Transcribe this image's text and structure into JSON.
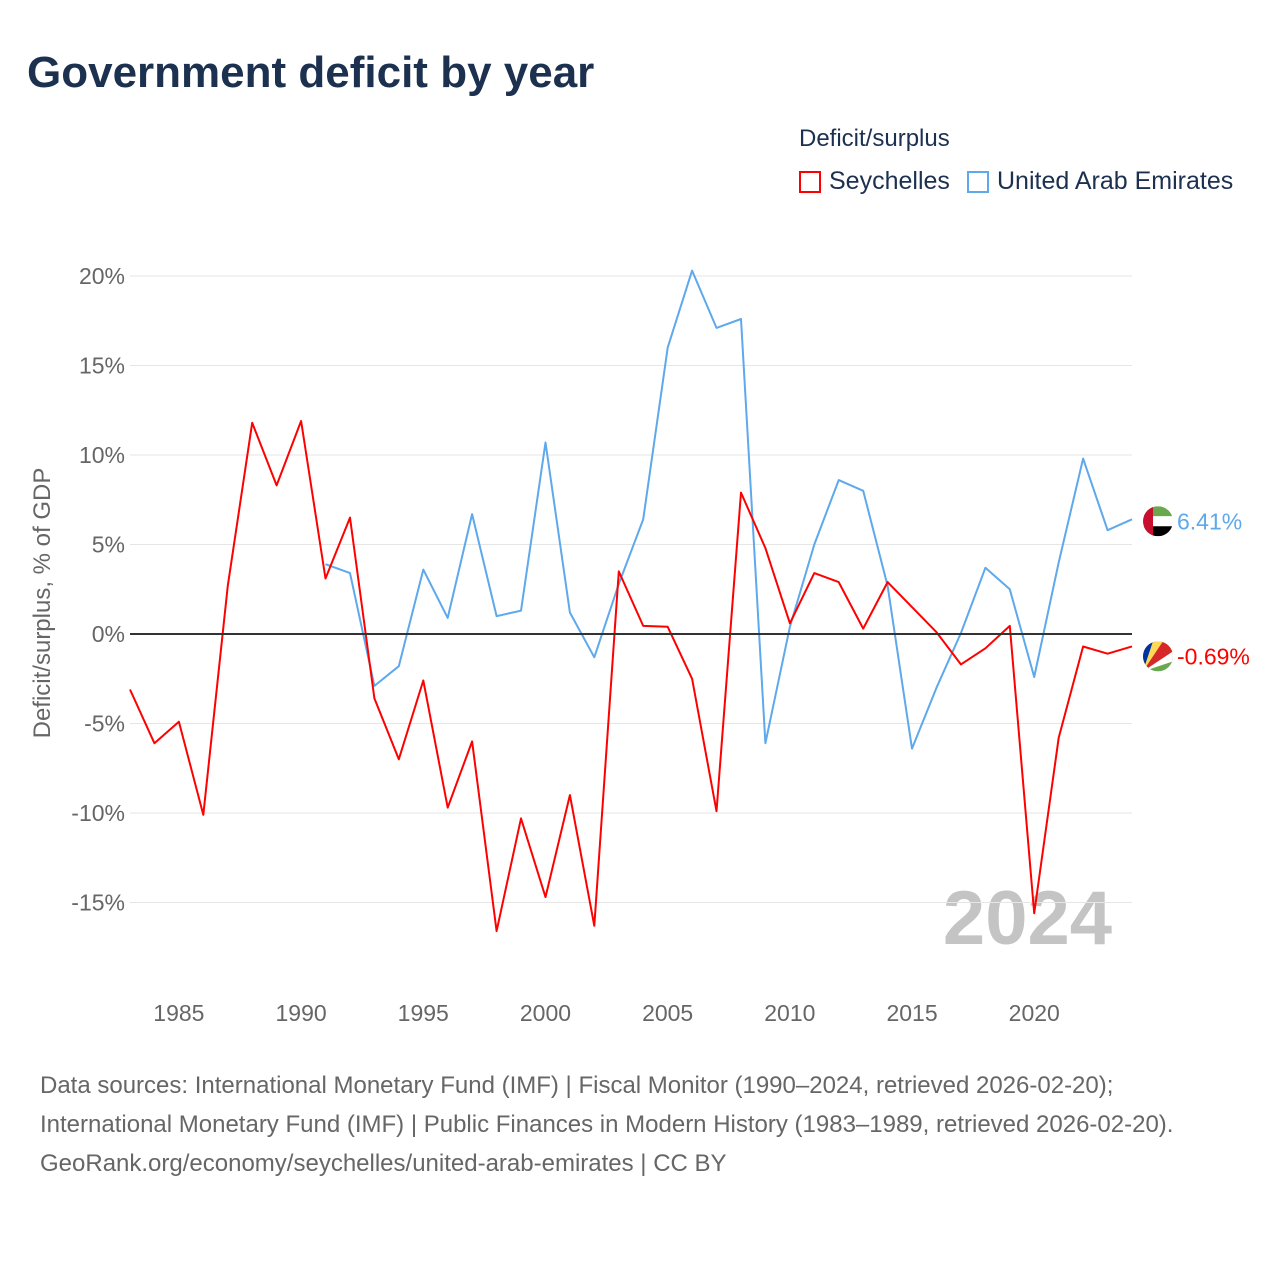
{
  "chart_data": {
    "type": "line",
    "title": "Government deficit by year",
    "xlabel": "",
    "ylabel": "Deficit/surplus, % of GDP",
    "legend_title": "Deficit/surplus",
    "legend_placement": "top-right",
    "xlim": [
      1983,
      2024
    ],
    "ylim": [
      -18.5,
      21
    ],
    "x_ticks": [
      1985,
      1990,
      1995,
      2000,
      2005,
      2010,
      2015,
      2020
    ],
    "x_tick_labels": [
      "1985",
      "1990",
      "1995",
      "2000",
      "2005",
      "2010",
      "2015",
      "2020"
    ],
    "y_ticks": [
      -15,
      -10,
      -5,
      0,
      5,
      10,
      15,
      20
    ],
    "y_tick_labels": [
      "-15%",
      "-10%",
      "-5%",
      "0%",
      "5%",
      "10%",
      "15%",
      "20%"
    ],
    "grid": true,
    "year_watermark": "2024",
    "series": [
      {
        "name": "Seychelles",
        "color": "#ff0000",
        "end_label": "-0.69%",
        "flag": "seychelles-flag",
        "x": [
          1983,
          1984,
          1985,
          1986,
          1987,
          1988,
          1989,
          1990,
          1991,
          1992,
          1993,
          1994,
          1995,
          1996,
          1997,
          1998,
          1999,
          2000,
          2001,
          2002,
          2003,
          2004,
          2005,
          2006,
          2007,
          2008,
          2009,
          2010,
          2011,
          2012,
          2013,
          2014,
          2015,
          2016,
          2017,
          2018,
          2019,
          2020,
          2021,
          2022,
          2023,
          2024
        ],
        "values": [
          -3.1,
          -6.1,
          -4.9,
          -10.1,
          2.7,
          11.8,
          8.3,
          11.9,
          3.1,
          6.5,
          -3.6,
          -7.0,
          -2.6,
          -9.7,
          -6.0,
          -16.6,
          -10.3,
          -14.7,
          -9.0,
          -16.3,
          3.5,
          0.45,
          0.4,
          -2.5,
          -9.9,
          7.9,
          4.8,
          0.6,
          3.4,
          2.9,
          0.3,
          2.9,
          1.5,
          0.1,
          -1.7,
          -0.8,
          0.45,
          -15.6,
          -5.8,
          -0.7,
          -1.1,
          -0.69
        ]
      },
      {
        "name": "United Arab Emirates",
        "color": "#5ea8ec",
        "end_label": "6.41%",
        "flag": "uae-flag",
        "x": [
          1991,
          1992,
          1993,
          1994,
          1995,
          1996,
          1997,
          1998,
          1999,
          2000,
          2001,
          2002,
          2003,
          2004,
          2005,
          2006,
          2007,
          2008,
          2009,
          2010,
          2011,
          2012,
          2013,
          2014,
          2015,
          2016,
          2017,
          2018,
          2019,
          2020,
          2021,
          2022,
          2023,
          2024
        ],
        "values": [
          3.9,
          3.4,
          -2.9,
          -1.8,
          3.6,
          0.9,
          6.7,
          1.0,
          1.3,
          10.7,
          1.2,
          -1.3,
          2.8,
          6.4,
          16.0,
          20.3,
          17.1,
          17.6,
          -6.1,
          0.4,
          5.0,
          8.6,
          8.0,
          2.7,
          -6.4,
          -3.0,
          0.05,
          3.7,
          2.5,
          -2.4,
          4.0,
          9.8,
          5.8,
          6.41
        ]
      }
    ]
  },
  "footer": {
    "sources": "Data sources: International Monetary Fund (IMF) | Fiscal Monitor (1990–2024, retrieved 2026-02-20); International Monetary Fund (IMF) | Public Finances in Modern History (1983–1989, retrieved 2026-02-20).",
    "credit": "GeoRank.org/economy/seychelles/united-arab-emirates | CC BY"
  }
}
